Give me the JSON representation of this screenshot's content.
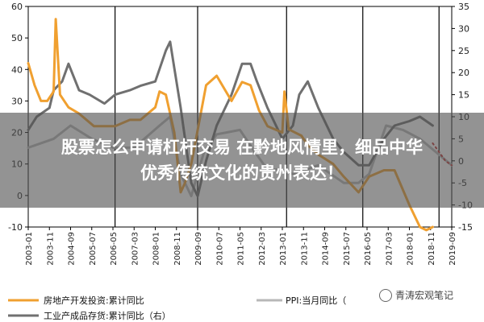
{
  "overlay": {
    "line1": "股票怎么申请杠杆交易 在黔地风情里，细品中华",
    "line2": "优秀传统文化的贵州表达！"
  },
  "watermark": "青涛宏观笔记",
  "chart_data": {
    "type": "line",
    "x_tick_labels": [
      "2003-01",
      "2003-11",
      "2004-09",
      "2005-07",
      "2006-05",
      "2007-03",
      "2008-01",
      "2008-11",
      "2009-09",
      "2010-07",
      "2011-05",
      "2012-03",
      "2013-01",
      "2013-11",
      "2014-09",
      "2015-07",
      "2016-05",
      "2017-03",
      "2018-01",
      "2018-11",
      "2019-09"
    ],
    "x_range": [
      "2003-01",
      "2019-09"
    ],
    "left_axis": {
      "ylim": [
        -10,
        60
      ],
      "ticks": [
        -10,
        0,
        10,
        20,
        30,
        40,
        50,
        60
      ]
    },
    "right_axis": {
      "ylim": [
        -15,
        35
      ],
      "ticks": [
        -15,
        -10,
        -5,
        0,
        5,
        10,
        15,
        20,
        25,
        30,
        35
      ]
    },
    "colors": {
      "real_estate": "#f0a030",
      "ppi": "#b8b8b8",
      "inventory": "#707070",
      "inventory_dotted": "#c03030"
    },
    "series": [
      {
        "name": "房地产开发投资:累计同比",
        "axis": "left",
        "x": [
          "2003-01",
          "2003-04",
          "2003-07",
          "2003-10",
          "2004-01",
          "2004-02",
          "2004-04",
          "2004-08",
          "2005-01",
          "2005-08",
          "2006-01",
          "2006-06",
          "2007-01",
          "2007-06",
          "2008-01",
          "2008-03",
          "2008-06",
          "2008-10",
          "2009-01",
          "2009-03",
          "2009-06",
          "2010-01",
          "2010-06",
          "2011-01",
          "2011-06",
          "2011-10",
          "2012-02",
          "2012-06",
          "2013-01",
          "2013-02",
          "2013-04",
          "2013-10",
          "2014-01",
          "2014-06",
          "2015-01",
          "2015-06",
          "2016-01",
          "2016-06",
          "2017-01",
          "2017-06",
          "2018-01",
          "2018-06",
          "2018-09",
          "2018-12"
        ],
        "values": [
          42,
          35,
          30,
          30,
          33,
          56,
          32,
          28,
          26,
          22,
          22,
          22,
          24,
          24,
          28,
          33,
          32,
          20,
          1,
          4,
          10,
          35,
          38,
          30,
          36,
          35,
          27,
          22,
          20,
          33,
          21,
          19,
          16,
          13,
          10,
          6,
          1,
          6,
          8,
          8,
          -3,
          -10,
          -11,
          -10
        ]
      },
      {
        "name": "PPI:当月同比",
        "axis": "right",
        "x": [
          "2003-01",
          "2004-01",
          "2004-09",
          "2005-07",
          "2006-05",
          "2007-03",
          "2008-03",
          "2008-08",
          "2008-11",
          "2009-01",
          "2009-06",
          "2009-12",
          "2010-06",
          "2011-05",
          "2011-12",
          "2012-06",
          "2013-01",
          "2013-06",
          "2014-06",
          "2015-06",
          "2016-01",
          "2016-06",
          "2017-02",
          "2017-10",
          "2018-06",
          "2018-11",
          "2019-09"
        ],
        "values": [
          3,
          5,
          8,
          5,
          3,
          3,
          8,
          10,
          2,
          -3,
          -8,
          2,
          6,
          7,
          2,
          -2,
          -2,
          -3,
          -1,
          -5,
          -5,
          -3,
          8,
          7,
          5,
          3,
          -1
        ]
      },
      {
        "name": "工业产成品存货:累计同比（右）",
        "axis": "right",
        "x": [
          "2003-01",
          "2003-05",
          "2003-11",
          "2004-01",
          "2004-05",
          "2004-08",
          "2005-01",
          "2005-06",
          "2006-01",
          "2006-06",
          "2007-01",
          "2007-06",
          "2008-01",
          "2008-06",
          "2008-08",
          "2008-10",
          "2009-01",
          "2009-06",
          "2009-09",
          "2010-01",
          "2010-06",
          "2011-01",
          "2011-06",
          "2011-10",
          "2012-01",
          "2012-06",
          "2013-01",
          "2013-06",
          "2013-09",
          "2014-01",
          "2014-06",
          "2015-01",
          "2015-06",
          "2016-01",
          "2016-06",
          "2017-01",
          "2017-06",
          "2018-01",
          "2018-06",
          "2018-12"
        ],
        "values": [
          7,
          10,
          12,
          16,
          18,
          22,
          16,
          15,
          13,
          15,
          16,
          17,
          18,
          25,
          27,
          21,
          12,
          -5,
          -8,
          0,
          8,
          15,
          22,
          22,
          18,
          12,
          5,
          8,
          15,
          18,
          12,
          5,
          2,
          -1,
          -1,
          5,
          8,
          9,
          10,
          8
        ]
      },
      {
        "name": "",
        "axis": "right",
        "style": "dotted",
        "x": [
          "2018-12",
          "2019-03",
          "2019-06",
          "2019-09"
        ],
        "values": [
          4,
          2,
          0,
          -1
        ]
      }
    ],
    "legend": {
      "placement": "bottom",
      "items": [
        "房地产开发投资:累计同比",
        "PPI:当月同比",
        "工业产成品存货:累计同比（右）"
      ],
      "ppi_suffix": "（"
    },
    "vertical_lines_at": [
      "2006-06",
      "2009-09",
      "2013-03",
      "2016-03",
      "2019-03"
    ],
    "grid": false
  }
}
